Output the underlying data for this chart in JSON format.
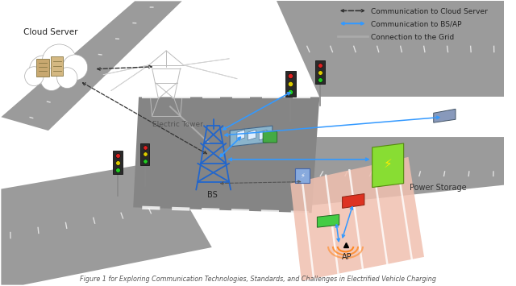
{
  "title": "Figure 1 for Exploring Communication Technologies, Standards, and Challenges in Electrified Vehicle Charging",
  "bg_color": "#ffffff",
  "legend_items": [
    {
      "label": "Communication to Cloud Server",
      "color": "#333333",
      "style": "dashed",
      "lw": 1.2
    },
    {
      "label": "Communication to BS/AP",
      "color": "#3399ff",
      "style": "solid",
      "lw": 1.5
    },
    {
      "label": "Connection to the Grid",
      "color": "#aaaaaa",
      "style": "solid",
      "lw": 2.0
    }
  ],
  "labels": {
    "cloud_server": "Cloud Server",
    "electric_tower": "Electric Tower",
    "bs": "BS",
    "ap": "AP",
    "power_storage": "Power Storage"
  },
  "road_color": "#999999",
  "road_dark": "#888888",
  "road_light": "#aaaaaa",
  "stripe_color": "#cccccc",
  "bg_scene": "#f5f5f0"
}
